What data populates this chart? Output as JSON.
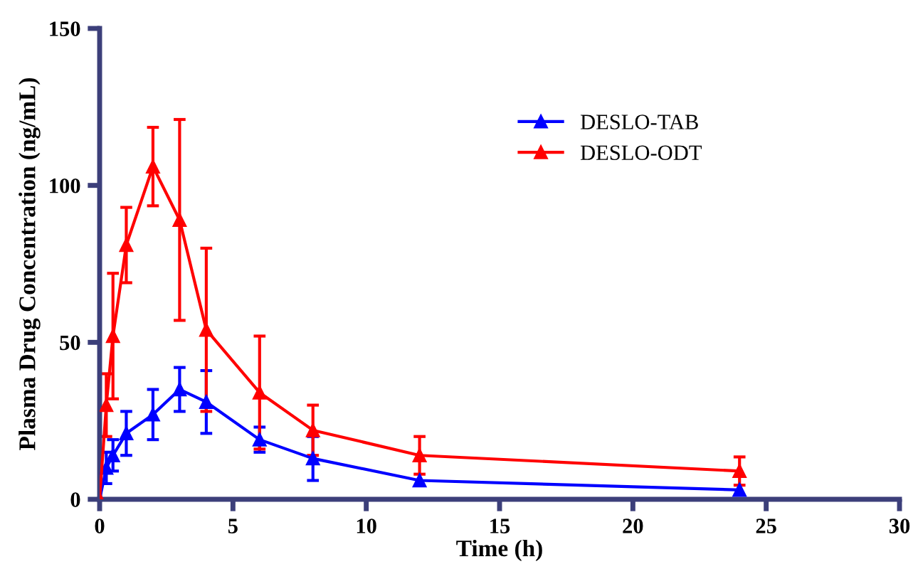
{
  "chart_data": {
    "type": "line",
    "xlabel": "Time (h)",
    "ylabel": "Plasma Drug Concentration (ng/mL)",
    "x": [
      0,
      0.25,
      0.5,
      1,
      2,
      3,
      4,
      6,
      8,
      12,
      24
    ],
    "series": [
      {
        "name": "DESLO-TAB",
        "color": "#0000ff",
        "values": [
          0,
          10,
          14,
          21,
          27,
          35,
          31,
          19,
          13,
          6,
          3
        ],
        "errors": [
          null,
          5,
          5,
          7,
          8,
          7,
          10,
          4,
          7,
          null,
          null
        ]
      },
      {
        "name": "DESLO-ODT",
        "color": "#ff0000",
        "values": [
          0,
          30,
          52,
          81,
          106,
          89,
          54,
          34,
          22,
          14,
          9
        ],
        "errors": [
          null,
          10,
          20,
          12,
          12.5,
          32,
          26,
          18,
          8,
          6,
          4.5
        ]
      }
    ],
    "xlim": [
      0,
      30
    ],
    "xticks": [
      0,
      5,
      10,
      15,
      20,
      25,
      30
    ],
    "ylim": [
      0,
      150
    ],
    "yticks": [
      0,
      50,
      100,
      150
    ],
    "marker": "triangle",
    "grid": false,
    "legend": "top right"
  }
}
